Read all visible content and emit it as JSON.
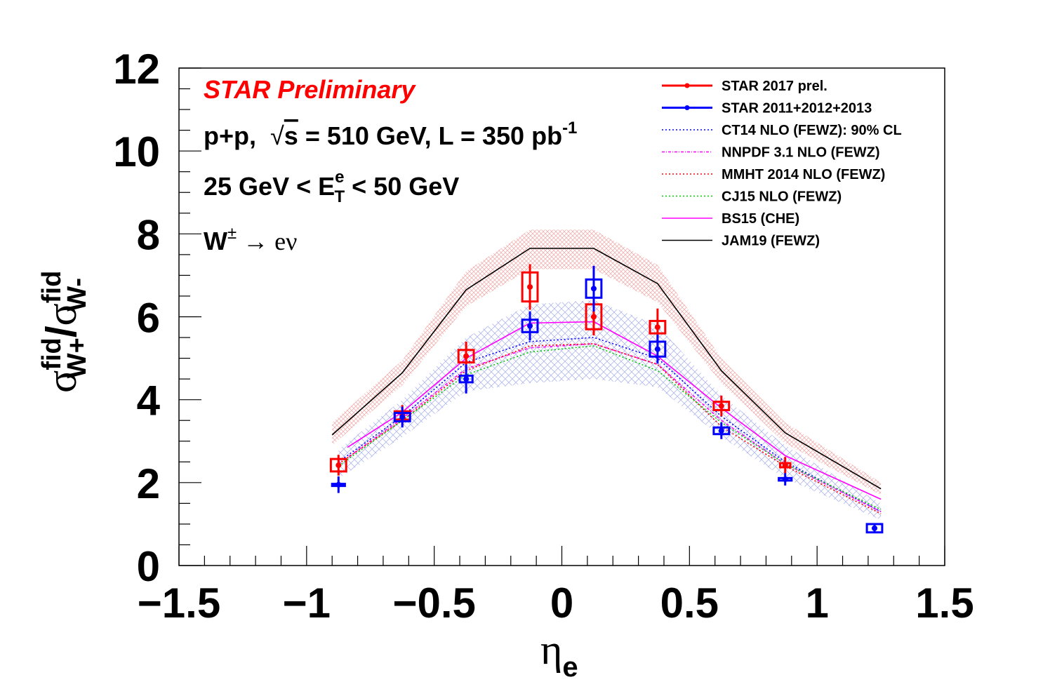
{
  "chart_data": {
    "type": "scatter",
    "xlabel": "η",
    "xlabel_sub": "e",
    "ylabel": {
      "sigma": "σ",
      "sup": "fid",
      "sub1": "W+",
      "slash": "/",
      "sub2": "W-"
    },
    "xlim": [
      -1.5,
      1.5
    ],
    "ylim": [
      0,
      12
    ],
    "x_ticks": [
      {
        "value": -1.5,
        "label": "−1.5"
      },
      {
        "value": -1.0,
        "label": "−1"
      },
      {
        "value": -0.5,
        "label": "−0.5"
      },
      {
        "value": 0.0,
        "label": "0"
      },
      {
        "value": 0.5,
        "label": "0.5"
      },
      {
        "value": 1.0,
        "label": "1"
      },
      {
        "value": 1.5,
        "label": "1.5"
      }
    ],
    "y_ticks": [
      {
        "value": 0,
        "label": "0"
      },
      {
        "value": 2,
        "label": "2"
      },
      {
        "value": 4,
        "label": "4"
      },
      {
        "value": 6,
        "label": "6"
      },
      {
        "value": 8,
        "label": "8"
      },
      {
        "value": 10,
        "label": "10"
      },
      {
        "value": 12,
        "label": "12"
      }
    ],
    "grid": false,
    "legend_position": "top-right",
    "annotations": {
      "preliminary": "STAR Preliminary",
      "line1_a": "p+p,",
      "line1_sqrt": "√",
      "line1_s": "s",
      "line1_b": " = 510 GeV, L = 350 pb",
      "line1_sup": "-1",
      "line2_a": "25 GeV < E",
      "line2_sup": "e",
      "line2_sub": "T",
      "line2_b": " < 50 GeV",
      "line3_a": "W",
      "line3_sup": "±",
      "line3_b": " → eν"
    },
    "series": [
      {
        "name": "STAR 2017 prel.",
        "kind": "data",
        "color": "#ff0000",
        "x": [
          -0.875,
          -0.625,
          -0.375,
          -0.125,
          0.125,
          0.375,
          0.625,
          0.875
        ],
        "y": [
          2.42,
          3.62,
          5.05,
          6.72,
          6.0,
          5.75,
          3.85,
          2.42
        ],
        "err": [
          0.25,
          0.25,
          0.35,
          0.55,
          0.45,
          0.45,
          0.25,
          0.2
        ],
        "syst_half_w": [
          0.03,
          0.03,
          0.03,
          0.03,
          0.03,
          0.03,
          0.03,
          0.02
        ],
        "syst_half_h": [
          0.15,
          0.1,
          0.15,
          0.35,
          0.3,
          0.15,
          0.1,
          0.05
        ]
      },
      {
        "name": "STAR 2011+2012+2013",
        "kind": "data",
        "color": "#0000ff",
        "x": [
          -0.875,
          -0.625,
          -0.375,
          -0.125,
          0.125,
          0.375,
          0.625,
          0.875,
          1.225
        ],
        "y": [
          1.95,
          3.58,
          4.5,
          5.78,
          6.68,
          5.22,
          3.25,
          2.08,
          0.9
        ],
        "err": [
          0.2,
          0.25,
          0.35,
          0.35,
          0.55,
          0.35,
          0.2,
          0.15,
          0.1
        ],
        "syst_half_w": [
          0.025,
          0.03,
          0.025,
          0.03,
          0.03,
          0.03,
          0.03,
          0.025,
          0.03
        ],
        "syst_half_h": [
          0.02,
          0.1,
          0.08,
          0.15,
          0.22,
          0.18,
          0.08,
          0.03,
          0.1
        ]
      },
      {
        "name": "CT14 NLO (FEWZ): 90% CL",
        "kind": "band-line",
        "color": "#0000ff",
        "dash": "2,3",
        "x": [
          -0.875,
          -0.625,
          -0.375,
          -0.125,
          0.125,
          0.375,
          0.625,
          0.875,
          1.25
        ],
        "y": [
          2.5,
          3.6,
          4.9,
          5.4,
          5.5,
          5.0,
          3.6,
          2.5,
          1.3
        ],
        "band_low": [
          2.1,
          3.1,
          4.2,
          4.4,
          4.5,
          4.3,
          3.1,
          2.1,
          1.1
        ],
        "band_high": [
          2.8,
          4.0,
          5.5,
          6.3,
          6.4,
          5.8,
          4.1,
          2.9,
          1.5
        ]
      },
      {
        "name": "NNPDF 3.1 NLO (FEWZ)",
        "kind": "line",
        "color": "#ff00ff",
        "dash": "4,2,1,2",
        "x": [
          -0.875,
          -0.625,
          -0.375,
          -0.125,
          0.125,
          0.375,
          0.625,
          0.875,
          1.25
        ],
        "y": [
          2.45,
          3.55,
          4.75,
          5.25,
          5.35,
          4.85,
          3.5,
          2.45,
          1.3
        ]
      },
      {
        "name": "MMHT 2014 NLO (FEWZ)",
        "kind": "line",
        "color": "#ff0000",
        "dash": "2,3",
        "x": [
          -0.875,
          -0.625,
          -0.375,
          -0.125,
          0.125,
          0.375,
          0.625,
          0.875,
          1.25
        ],
        "y": [
          2.45,
          3.5,
          4.7,
          5.3,
          5.35,
          4.85,
          3.35,
          2.4,
          1.25
        ]
      },
      {
        "name": "CJ15 NLO (FEWZ)",
        "kind": "line",
        "color": "#00cc00",
        "dash": "2,3",
        "x": [
          -0.875,
          -0.625,
          -0.375,
          -0.125,
          0.125,
          0.375,
          0.625,
          0.875,
          1.25
        ],
        "y": [
          2.4,
          3.5,
          4.6,
          5.15,
          5.3,
          4.7,
          3.45,
          2.45,
          1.35
        ]
      },
      {
        "name": "BS15 (CHE)",
        "kind": "line",
        "color": "#ff00ff",
        "x": [
          -0.84,
          -0.625,
          -0.375,
          -0.125,
          0.125,
          0.375,
          0.625,
          0.875,
          1.25
        ],
        "y": [
          2.85,
          3.7,
          5.0,
          5.85,
          5.88,
          5.05,
          3.8,
          2.65,
          1.6
        ]
      },
      {
        "name": "JAM19 (FEWZ)",
        "kind": "band-line",
        "color": "#000000",
        "x": [
          -0.9,
          -0.625,
          -0.375,
          -0.125,
          0.125,
          0.375,
          0.625,
          0.875,
          1.25
        ],
        "y": [
          3.15,
          4.65,
          6.65,
          7.65,
          7.65,
          6.8,
          4.7,
          3.2,
          1.85
        ],
        "band_low": [
          2.9,
          4.35,
          6.25,
          7.15,
          7.15,
          6.35,
          4.4,
          2.95,
          1.7
        ],
        "band_high": [
          3.45,
          4.95,
          7.1,
          8.1,
          8.1,
          7.25,
          5.0,
          3.45,
          2.0
        ]
      }
    ],
    "colors": {
      "ct14_band": "#a8b0e8",
      "jam19_band": "#f0a8a8"
    }
  }
}
